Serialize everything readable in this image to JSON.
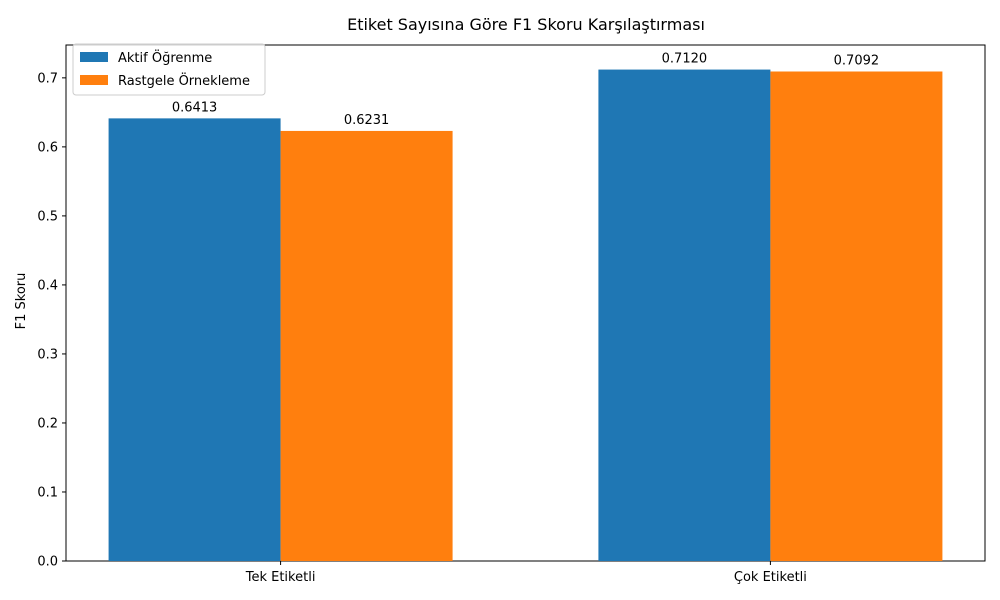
{
  "chart_data": {
    "type": "bar",
    "title": "Etiket Sayısına Göre F1 Skoru Karşılaştırması",
    "xlabel": "",
    "ylabel": "F1 Skoru",
    "ylim": [
      0,
      0.7476
    ],
    "yticks": [
      "0.0",
      "0.1",
      "0.2",
      "0.3",
      "0.4",
      "0.5",
      "0.6",
      "0.7"
    ],
    "ytick_values": [
      0,
      0.1,
      0.2,
      0.3,
      0.4,
      0.5,
      0.6,
      0.7
    ],
    "categories": [
      "Tek Etiketli",
      "Çok Etiketli"
    ],
    "series": [
      {
        "name": "Aktif Öğrenme",
        "color": "#1f77b4",
        "values": [
          0.6413,
          0.712
        ],
        "labels": [
          "0.6413",
          "0.7120"
        ]
      },
      {
        "name": "Rastgele Örnekleme",
        "color": "#ff7f0e",
        "values": [
          0.6231,
          0.7092
        ],
        "labels": [
          "0.6231",
          "0.7092"
        ]
      }
    ],
    "legend_position": "top-left",
    "grid": false
  }
}
